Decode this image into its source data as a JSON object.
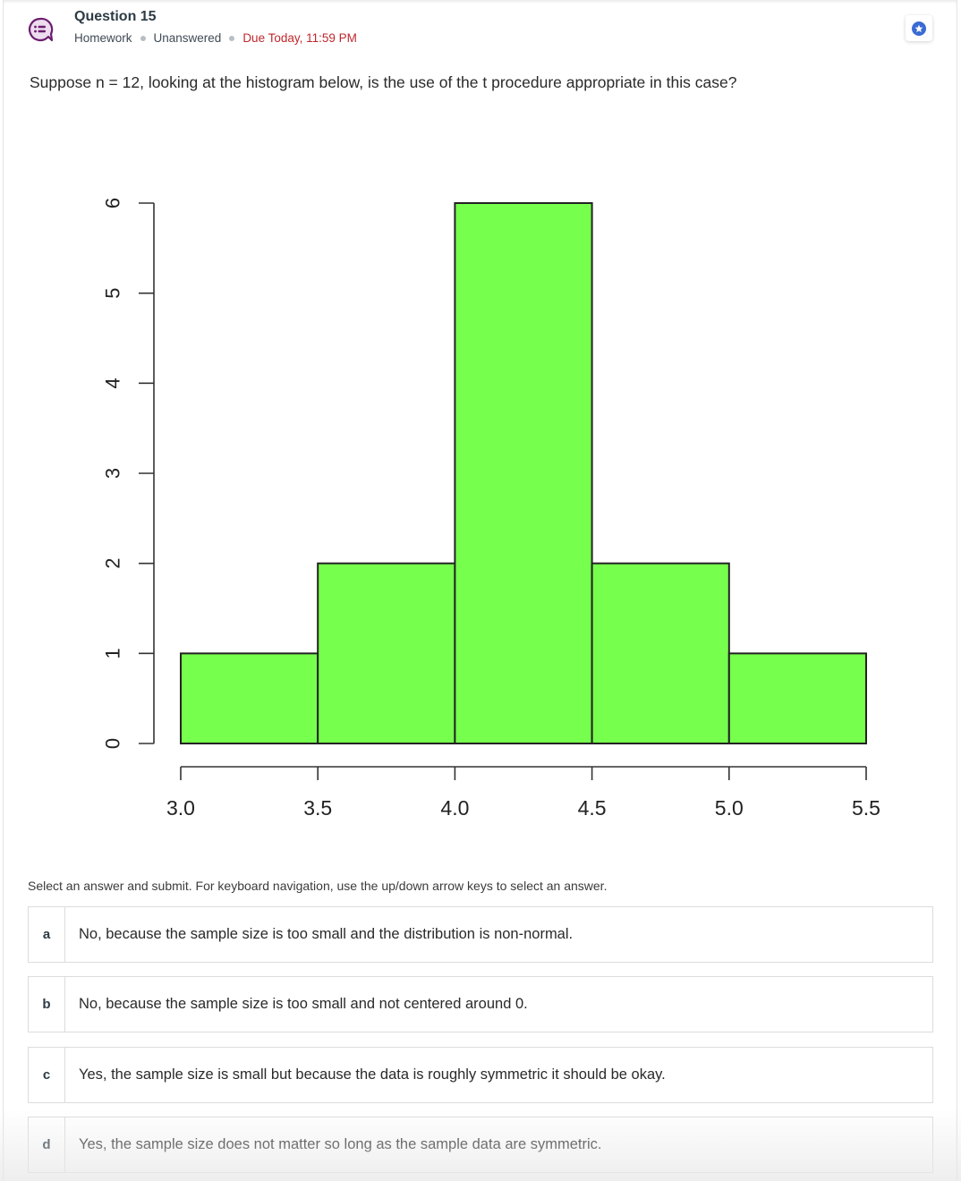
{
  "header": {
    "title": "Question 15",
    "meta": {
      "type": "Homework",
      "status": "Unanswered",
      "due": "Due Today, 11:59 PM"
    },
    "icons": {
      "question": "chat-list-icon",
      "bookmark": "star-icon"
    },
    "colors": {
      "icon_purple": "#6b1d6e",
      "due_red": "#c0282d",
      "star_blue": "#3a6bd3"
    }
  },
  "question": {
    "text": "Suppose n = 12, looking at the histogram below, is the use of the t procedure appropriate in this case?"
  },
  "chart_data": {
    "type": "bar",
    "subtype": "histogram",
    "title": "",
    "xlabel": "",
    "ylabel": "",
    "bin_edges": [
      3.0,
      3.5,
      4.0,
      4.5,
      5.0,
      5.5
    ],
    "categories": [
      "3.0-3.5",
      "3.5-4.0",
      "4.0-4.5",
      "4.5-5.0",
      "5.0-5.5"
    ],
    "values": [
      1,
      2,
      6,
      2,
      1
    ],
    "x_ticks": [
      "3.0",
      "3.5",
      "4.0",
      "4.5",
      "5.0",
      "5.5"
    ],
    "y_ticks": [
      "0",
      "1",
      "2",
      "3",
      "4",
      "5",
      "6"
    ],
    "xlim": [
      3.0,
      5.5
    ],
    "ylim": [
      0,
      6
    ],
    "grid": false,
    "legend": null,
    "bar_color": "#77ff4d",
    "edge_color": "#222222"
  },
  "instructions": "Select an answer and submit. For keyboard navigation, use the up/down arrow keys to select an answer.",
  "answers": [
    {
      "letter": "a",
      "text": "No, because the sample size is too small and the distribution is non-normal."
    },
    {
      "letter": "b",
      "text": "No, because the sample size is too small and not centered around 0."
    },
    {
      "letter": "c",
      "text": "Yes, the sample size is small but because the data is roughly symmetric it should be okay."
    },
    {
      "letter": "d",
      "text": "Yes, the sample size does not matter so long as the sample data are symmetric."
    }
  ]
}
